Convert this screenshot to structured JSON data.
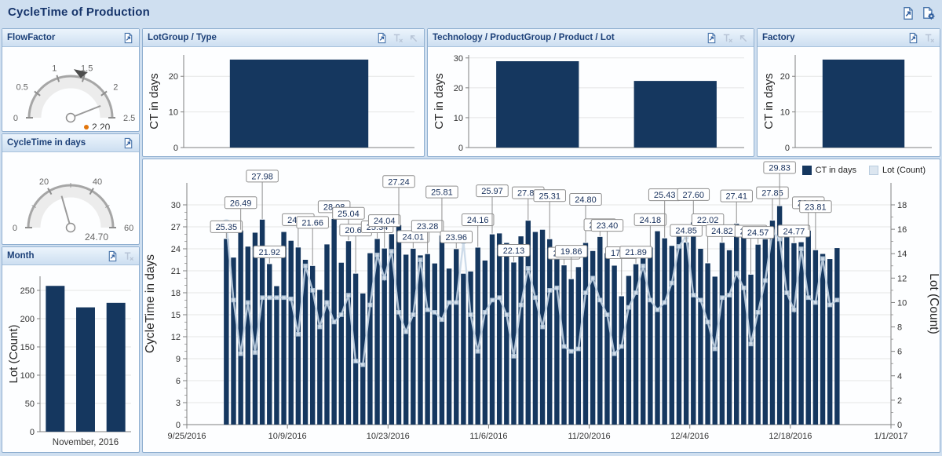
{
  "title": "CycleTime of Production",
  "titlebar": {
    "icons": [
      "export-dashboard-icon",
      "dashboard-settings-icon"
    ]
  },
  "colors": {
    "page_bg": "#CFDFF0",
    "bar": "#15375F",
    "lot_line": "#C7D7E7",
    "lot_marker_fill": "#D7E2EE",
    "lot_marker_stroke": "#A9C2D8",
    "grid": "#E5E5E5",
    "axis": "#808080",
    "tick_text": "#333333",
    "label_box_border": "#8E8E8E",
    "label_text": "#17305C",
    "value_orange": "#E2760C",
    "disabled_icon": "#B7C4D6",
    "icon_blue": "#2F5E9E"
  },
  "flowfactor": {
    "title": "FlowFactor",
    "gauge": {
      "min": 0,
      "max": 2.5,
      "major_ticks": [
        0,
        0.5,
        1,
        1.5,
        2,
        2.5
      ],
      "tick_labels": [
        "0",
        "0.5",
        "1",
        "1.5",
        "2",
        "2.5"
      ],
      "value": 2.2,
      "value_text": "2.20",
      "target": 1.45,
      "value_dot": true
    }
  },
  "cycletime": {
    "title": "CycleTime in days",
    "gauge": {
      "min": 0,
      "max": 60,
      "major_ticks": [
        0,
        20,
        40,
        60
      ],
      "tick_labels": [
        "0",
        "20",
        "40",
        "60"
      ],
      "minor_ticks": [
        10,
        30,
        50
      ],
      "value": 24.7,
      "value_text": "24.70",
      "value_dot": false
    }
  },
  "month": {
    "title": "Month",
    "chart_data": {
      "type": "bar",
      "ylabel": "Lot (Count)",
      "yticks": [
        0,
        50,
        100,
        150,
        200,
        250
      ],
      "ylim": [
        0,
        275
      ],
      "categories": [
        "",
        "November, 2016",
        ""
      ],
      "values": [
        258,
        220,
        228
      ]
    }
  },
  "lotgroup": {
    "title": "LotGroup / Type",
    "chart_data": {
      "type": "bar",
      "ylabel": "CT in days",
      "yticks": [
        0,
        10,
        20
      ],
      "ylim": [
        0,
        26
      ],
      "categories": [
        ""
      ],
      "values": [
        24.7
      ]
    }
  },
  "technology": {
    "title": "Technology / ProductGroup / Product / Lot",
    "chart_data": {
      "type": "bar",
      "ylabel": "CT in days",
      "yticks": [
        0,
        10,
        20,
        30
      ],
      "ylim": [
        0,
        31
      ],
      "categories": [
        "",
        ""
      ],
      "values": [
        28.9,
        22.3
      ]
    }
  },
  "factory": {
    "title": "Factory",
    "chart_data": {
      "type": "bar",
      "ylabel": "CT in days",
      "yticks": [
        0,
        10,
        20
      ],
      "ylim": [
        0,
        26
      ],
      "categories": [
        ""
      ],
      "values": [
        24.7
      ]
    }
  },
  "main_chart": {
    "legend": [
      {
        "label": "CT in days",
        "swatch": "bar"
      },
      {
        "label": "Lot (Count)",
        "swatch": "lot"
      }
    ],
    "chart_data": {
      "type": "bar+line",
      "ylabel_left": "CycleTime in days",
      "ylabel_right": "Lot (Count)",
      "yticks_left": [
        0,
        3,
        6,
        9,
        12,
        15,
        18,
        21,
        24,
        27,
        30
      ],
      "yticks_right": [
        0,
        2,
        4,
        6,
        8,
        10,
        12,
        14,
        16,
        18
      ],
      "ylim_left": [
        0,
        33
      ],
      "ylim_right": [
        0,
        19.8
      ],
      "x_dates": [
        "9/25/2016",
        "10/9/2016",
        "10/23/2016",
        "11/6/2016",
        "11/20/2016",
        "12/4/2016",
        "12/18/2016",
        "1/1/2017"
      ],
      "x_span_days": 98,
      "bar_start_day": 5,
      "bars": [
        25.35,
        22.8,
        26.49,
        24.3,
        26.2,
        27.98,
        21.92,
        18.9,
        26.3,
        25.1,
        24.18,
        22.5,
        21.66,
        18.4,
        24.6,
        28.08,
        22.1,
        25.04,
        20.61,
        17.9,
        23.4,
        25.34,
        24.04,
        26.0,
        27.24,
        23.2,
        24.01,
        23.1,
        23.28,
        22.0,
        25.81,
        21.3,
        23.96,
        20.6,
        20.9,
        24.16,
        22.4,
        25.97,
        26.1,
        24.8,
        22.13,
        25.7,
        27.84,
        26.3,
        26.6,
        25.31,
        22.9,
        21.74,
        19.86,
        21.5,
        24.8,
        23.7,
        25.62,
        23.4,
        21.7,
        17.52,
        20.3,
        21.89,
        23.3,
        24.18,
        26.4,
        25.43,
        24.4,
        26.5,
        24.85,
        27.6,
        24.0,
        22.02,
        20.2,
        24.82,
        23.8,
        27.41,
        26.2,
        20.47,
        24.57,
        25.3,
        27.85,
        29.83,
        26.9,
        24.77,
        24.9,
        26.48,
        23.81,
        23.3,
        22.6,
        24.1
      ],
      "bar_labels": [
        {
          "i": 0,
          "t": "25.35"
        },
        {
          "i": 2,
          "t": "26.49"
        },
        {
          "i": 5,
          "t": "27.98"
        },
        {
          "i": 6,
          "t": "21.92"
        },
        {
          "i": 10,
          "t": "24.18"
        },
        {
          "i": 12,
          "t": "21.66"
        },
        {
          "i": 15,
          "t": "28.08"
        },
        {
          "i": 17,
          "t": "25.04"
        },
        {
          "i": 18,
          "t": "20.61"
        },
        {
          "i": 21,
          "t": "25.34"
        },
        {
          "i": 22,
          "t": "24.04"
        },
        {
          "i": 24,
          "t": "27.24"
        },
        {
          "i": 26,
          "t": "24.01"
        },
        {
          "i": 28,
          "t": "23.28"
        },
        {
          "i": 30,
          "t": "25.81"
        },
        {
          "i": 32,
          "t": "23.96"
        },
        {
          "i": 35,
          "t": "24.16"
        },
        {
          "i": 37,
          "t": "25.97"
        },
        {
          "i": 40,
          "t": "22.13"
        },
        {
          "i": 42,
          "t": "27.84"
        },
        {
          "i": 45,
          "t": "25.31"
        },
        {
          "i": 47,
          "t": "21.74"
        },
        {
          "i": 48,
          "t": "19.86"
        },
        {
          "i": 50,
          "t": "24.80"
        },
        {
          "i": 52,
          "t": "25.62"
        },
        {
          "i": 53,
          "t": "23.40"
        },
        {
          "i": 55,
          "t": "17.52"
        },
        {
          "i": 57,
          "t": "21.89"
        },
        {
          "i": 59,
          "t": "24.18"
        },
        {
          "i": 61,
          "t": "25.43"
        },
        {
          "i": 64,
          "t": "24.85"
        },
        {
          "i": 65,
          "t": "27.60"
        },
        {
          "i": 67,
          "t": "22.02"
        },
        {
          "i": 69,
          "t": "24.82"
        },
        {
          "i": 71,
          "t": "27.41"
        },
        {
          "i": 73,
          "t": "20.47"
        },
        {
          "i": 74,
          "t": "24.57"
        },
        {
          "i": 76,
          "t": "27.85"
        },
        {
          "i": 77,
          "t": "29.83"
        },
        {
          "i": 79,
          "t": "24.77"
        },
        {
          "i": 81,
          "t": "26.48"
        },
        {
          "i": 82,
          "t": "23.81"
        }
      ],
      "lot_line": [
        16.4,
        10.2,
        5.8,
        10.0,
        5.9,
        10.4,
        10.4,
        10.4,
        10.4,
        10.3,
        7.4,
        13.0,
        11.0,
        8.0,
        10.0,
        8.4,
        9.0,
        10.6,
        5.2,
        4.9,
        9.8,
        13.9,
        12.0,
        14.2,
        9.2,
        7.6,
        9.0,
        13.5,
        9.4,
        9.2,
        8.6,
        10.0,
        10.0,
        15.0,
        9.0,
        6.0,
        9.2,
        10.2,
        10.4,
        9.0,
        5.6,
        9.8,
        12.8,
        10.4,
        8.0,
        11.0,
        11.2,
        6.4,
        6.0,
        6.2,
        10.8,
        12.0,
        10.2,
        9.0,
        5.8,
        6.4,
        9.6,
        10.8,
        13.0,
        10.2,
        9.4,
        10.0,
        11.6,
        14.6,
        15.4,
        10.6,
        10.2,
        8.4,
        6.2,
        10.4,
        10.6,
        12.4,
        11.2,
        6.6,
        9.2,
        11.8,
        15.8,
        15.2,
        10.8,
        9.4,
        14.4,
        10.4,
        10.0,
        13.6,
        9.8,
        10.2
      ]
    }
  }
}
